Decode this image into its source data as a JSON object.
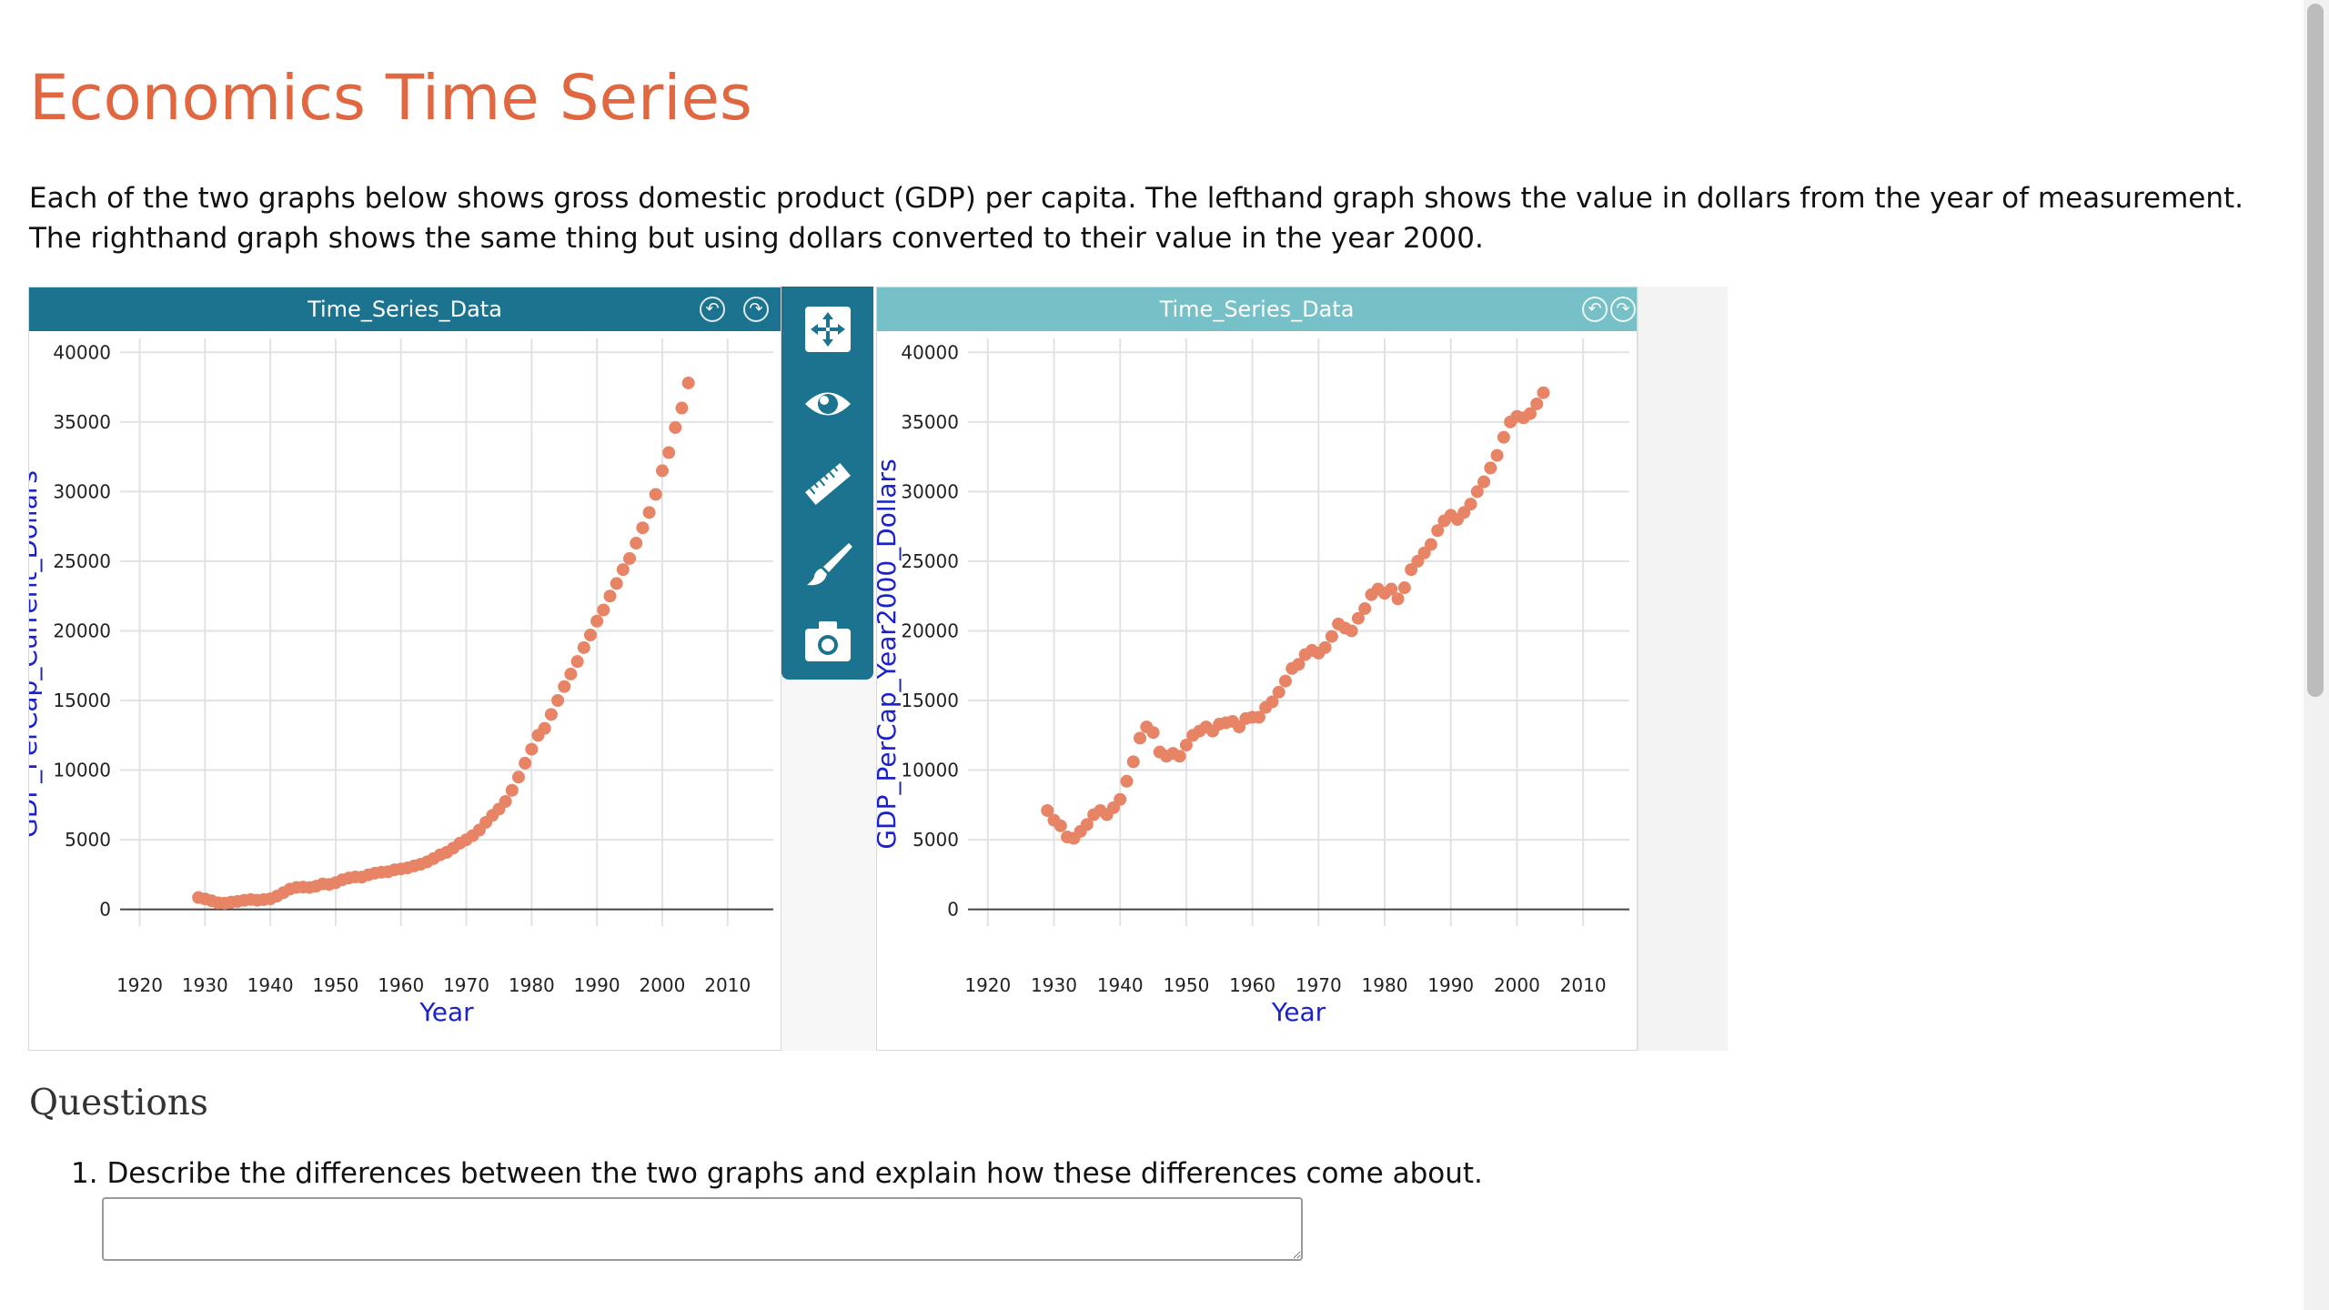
{
  "page": {
    "title": "Economics Time Series",
    "intro": "Each of the two graphs below shows gross domestic product (GDP) per capita. The lefthand graph shows the value in dollars from the year of measurement. The righthand graph shows the same thing but using dollars converted to their value in the year 2000."
  },
  "colors": {
    "accent": "#e0673f",
    "titlebar_active": "#1b7390",
    "titlebar_inactive": "#77c0c8",
    "point": "#e88466",
    "axis_label": "#1a22c8"
  },
  "toolbar": {
    "tools": [
      "move-icon",
      "eye-icon",
      "ruler-icon",
      "brush-icon",
      "camera-icon"
    ]
  },
  "graphs": [
    {
      "title": "Time_Series_Data",
      "xlabel": "Year",
      "ylabel": "GDP_PerCap_Current_Dollars"
    },
    {
      "title": "Time_Series_Data",
      "xlabel": "Year",
      "ylabel": "GDP_PerCap_Year2000_Dollars"
    }
  ],
  "chart_data": [
    {
      "type": "scatter",
      "title": "Time_Series_Data",
      "xlabel": "Year",
      "ylabel": "GDP_PerCap_Current_Dollars",
      "xlim": [
        1917,
        2017
      ],
      "ylim": [
        -1200,
        41000
      ],
      "xticks": [
        1920,
        1930,
        1940,
        1950,
        1960,
        1970,
        1980,
        1990,
        2000,
        2010
      ],
      "yticks": [
        0,
        5000,
        10000,
        15000,
        20000,
        25000,
        30000,
        35000,
        40000
      ],
      "grid": true,
      "x": [
        1929,
        1930,
        1931,
        1932,
        1933,
        1934,
        1935,
        1936,
        1937,
        1938,
        1939,
        1940,
        1941,
        1942,
        1943,
        1944,
        1945,
        1946,
        1947,
        1948,
        1949,
        1950,
        1951,
        1952,
        1953,
        1954,
        1955,
        1956,
        1957,
        1958,
        1959,
        1960,
        1961,
        1962,
        1963,
        1964,
        1965,
        1966,
        1967,
        1968,
        1969,
        1970,
        1971,
        1972,
        1973,
        1974,
        1975,
        1976,
        1977,
        1978,
        1979,
        1980,
        1981,
        1982,
        1983,
        1984,
        1985,
        1986,
        1987,
        1988,
        1989,
        1990,
        1991,
        1992,
        1993,
        1994,
        1995,
        1996,
        1997,
        1998,
        1999,
        2000,
        2001,
        2002,
        2003,
        2004
      ],
      "y": [
        850,
        750,
        620,
        470,
        450,
        520,
        570,
        650,
        710,
        650,
        700,
        760,
        950,
        1200,
        1450,
        1580,
        1600,
        1570,
        1670,
        1830,
        1790,
        1920,
        2120,
        2250,
        2330,
        2320,
        2480,
        2600,
        2670,
        2700,
        2840,
        2900,
        2980,
        3120,
        3240,
        3410,
        3650,
        3920,
        4100,
        4400,
        4750,
        5000,
        5300,
        5700,
        6250,
        6750,
        7200,
        7750,
        8550,
        9500,
        10500,
        11500,
        12500,
        13000,
        14000,
        15000,
        16000,
        16900,
        17800,
        18800,
        19700,
        20700,
        21500,
        22500,
        23400,
        24400,
        25200,
        26300,
        27400,
        28500,
        29800,
        31500,
        32800,
        34600,
        36000,
        37800
      ]
    },
    {
      "type": "scatter",
      "title": "Time_Series_Data",
      "xlabel": "Year",
      "ylabel": "GDP_PerCap_Year2000_Dollars",
      "xlim": [
        1917,
        2017
      ],
      "ylim": [
        -1200,
        41000
      ],
      "xticks": [
        1920,
        1930,
        1940,
        1950,
        1960,
        1970,
        1980,
        1990,
        2000,
        2010
      ],
      "yticks": [
        0,
        5000,
        10000,
        15000,
        20000,
        25000,
        30000,
        35000,
        40000
      ],
      "grid": true,
      "x": [
        1929,
        1930,
        1931,
        1932,
        1933,
        1934,
        1935,
        1936,
        1937,
        1938,
        1939,
        1940,
        1941,
        1942,
        1943,
        1944,
        1945,
        1946,
        1947,
        1948,
        1949,
        1950,
        1951,
        1952,
        1953,
        1954,
        1955,
        1956,
        1957,
        1958,
        1959,
        1960,
        1961,
        1962,
        1963,
        1964,
        1965,
        1966,
        1967,
        1968,
        1969,
        1970,
        1971,
        1972,
        1973,
        1974,
        1975,
        1976,
        1977,
        1978,
        1979,
        1980,
        1981,
        1982,
        1983,
        1984,
        1985,
        1986,
        1987,
        1988,
        1989,
        1990,
        1991,
        1992,
        1993,
        1994,
        1995,
        1996,
        1997,
        1998,
        1999,
        2000,
        2001,
        2002,
        2003,
        2004
      ],
      "y": [
        7100,
        6400,
        6000,
        5200,
        5100,
        5600,
        6100,
        6800,
        7100,
        6800,
        7300,
        7900,
        9200,
        10600,
        12300,
        13100,
        12700,
        11300,
        11000,
        11200,
        11000,
        11800,
        12500,
        12800,
        13100,
        12800,
        13300,
        13400,
        13500,
        13100,
        13700,
        13800,
        13800,
        14500,
        14900,
        15600,
        16400,
        17300,
        17600,
        18300,
        18600,
        18400,
        18800,
        19600,
        20500,
        20200,
        20000,
        20900,
        21600,
        22600,
        23000,
        22700,
        23000,
        22300,
        23100,
        24400,
        25000,
        25600,
        26200,
        27200,
        27900,
        28300,
        28000,
        28500,
        29100,
        30000,
        30700,
        31700,
        32600,
        33900,
        35000,
        35400,
        35300,
        35600,
        36300,
        37100
      ]
    }
  ],
  "questions": {
    "heading": "Questions",
    "items": [
      {
        "number": "1.",
        "text": "Describe the differences between the two graphs and explain how these differences come about."
      }
    ],
    "answer_value": ""
  }
}
